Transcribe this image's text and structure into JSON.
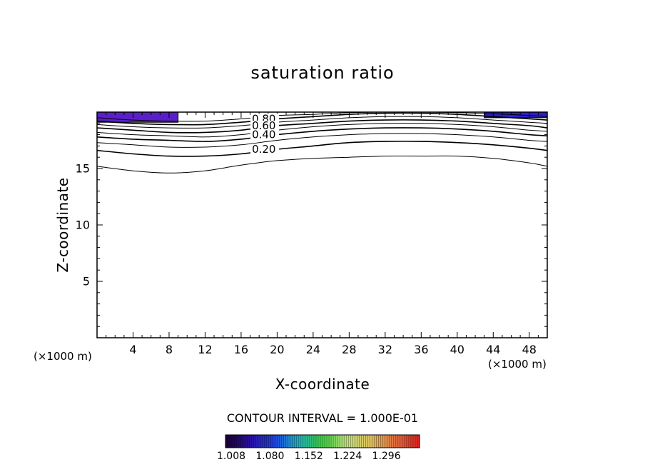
{
  "chart_data": {
    "type": "contour",
    "title": "saturation ratio",
    "xlabel": "X-coordinate",
    "ylabel": "Z-coordinate",
    "x_unit_left": "(×1000 m)",
    "x_unit_right": "(×1000 m)",
    "xlim": [
      0,
      50
    ],
    "ylim": [
      0,
      20
    ],
    "x_ticks": [
      "4",
      "8",
      "12",
      "16",
      "20",
      "24",
      "28",
      "32",
      "36",
      "40",
      "44",
      "48"
    ],
    "y_ticks": [
      "5",
      "10",
      "15"
    ],
    "contour_interval_text": "CONTOUR INTERVAL = 1.000E-01",
    "contour_labels": [
      "0.80",
      "0.60",
      "0.40",
      "0.20"
    ],
    "contours": [
      {
        "level": 0.1,
        "points": [
          [
            0,
            15.2
          ],
          [
            4,
            14.8
          ],
          [
            8,
            14.6
          ],
          [
            12,
            14.8
          ],
          [
            16,
            15.3
          ],
          [
            20,
            15.7
          ],
          [
            24,
            15.9
          ],
          [
            28,
            16.0
          ],
          [
            32,
            16.1
          ],
          [
            36,
            16.1
          ],
          [
            40,
            16.1
          ],
          [
            44,
            15.9
          ],
          [
            48,
            15.5
          ],
          [
            50,
            15.2
          ]
        ]
      },
      {
        "level": 0.2,
        "points": [
          [
            0,
            16.6
          ],
          [
            4,
            16.3
          ],
          [
            8,
            16.1
          ],
          [
            12,
            16.1
          ],
          [
            16,
            16.3
          ],
          [
            20,
            16.7
          ],
          [
            24,
            17.0
          ],
          [
            28,
            17.3
          ],
          [
            32,
            17.4
          ],
          [
            36,
            17.4
          ],
          [
            40,
            17.3
          ],
          [
            44,
            17.1
          ],
          [
            48,
            16.8
          ],
          [
            50,
            16.6
          ]
        ]
      },
      {
        "level": 0.3,
        "points": [
          [
            0,
            17.3
          ],
          [
            4,
            17.1
          ],
          [
            8,
            16.9
          ],
          [
            12,
            16.9
          ],
          [
            16,
            17.1
          ],
          [
            20,
            17.5
          ],
          [
            24,
            17.8
          ],
          [
            28,
            18.0
          ],
          [
            32,
            18.1
          ],
          [
            36,
            18.1
          ],
          [
            40,
            18.0
          ],
          [
            44,
            17.8
          ],
          [
            48,
            17.5
          ],
          [
            50,
            17.4
          ]
        ]
      },
      {
        "level": 0.4,
        "points": [
          [
            0,
            17.8
          ],
          [
            4,
            17.6
          ],
          [
            8,
            17.5
          ],
          [
            12,
            17.4
          ],
          [
            16,
            17.6
          ],
          [
            20,
            18.0
          ],
          [
            24,
            18.3
          ],
          [
            28,
            18.5
          ],
          [
            32,
            18.6
          ],
          [
            36,
            18.6
          ],
          [
            40,
            18.5
          ],
          [
            44,
            18.3
          ],
          [
            48,
            18.0
          ],
          [
            50,
            17.9
          ]
        ]
      },
      {
        "level": 0.5,
        "points": [
          [
            0,
            18.2
          ],
          [
            4,
            18.0
          ],
          [
            8,
            17.9
          ],
          [
            12,
            17.8
          ],
          [
            16,
            18.0
          ],
          [
            20,
            18.4
          ],
          [
            24,
            18.7
          ],
          [
            28,
            18.9
          ],
          [
            32,
            19.0
          ],
          [
            36,
            19.0
          ],
          [
            40,
            18.9
          ],
          [
            44,
            18.7
          ],
          [
            48,
            18.4
          ],
          [
            50,
            18.3
          ]
        ]
      },
      {
        "level": 0.6,
        "points": [
          [
            0,
            18.6
          ],
          [
            4,
            18.4
          ],
          [
            8,
            18.2
          ],
          [
            12,
            18.2
          ],
          [
            16,
            18.4
          ],
          [
            20,
            18.8
          ],
          [
            24,
            19.0
          ],
          [
            28,
            19.2
          ],
          [
            32,
            19.3
          ],
          [
            36,
            19.3
          ],
          [
            40,
            19.2
          ],
          [
            44,
            19.0
          ],
          [
            48,
            18.8
          ],
          [
            50,
            18.6
          ]
        ]
      },
      {
        "level": 0.7,
        "points": [
          [
            0,
            18.9
          ],
          [
            4,
            18.7
          ],
          [
            8,
            18.6
          ],
          [
            12,
            18.6
          ],
          [
            16,
            18.8
          ],
          [
            20,
            19.1
          ],
          [
            24,
            19.3
          ],
          [
            28,
            19.5
          ],
          [
            32,
            19.6
          ],
          [
            36,
            19.6
          ],
          [
            40,
            19.5
          ],
          [
            44,
            19.3
          ],
          [
            48,
            19.1
          ],
          [
            50,
            19.0
          ]
        ]
      },
      {
        "level": 0.8,
        "points": [
          [
            0,
            19.2
          ],
          [
            4,
            19.0
          ],
          [
            8,
            18.9
          ],
          [
            12,
            18.9
          ],
          [
            16,
            19.1
          ],
          [
            20,
            19.4
          ],
          [
            24,
            19.6
          ],
          [
            28,
            19.8
          ],
          [
            32,
            19.9
          ],
          [
            36,
            19.9
          ],
          [
            40,
            19.8
          ],
          [
            44,
            19.6
          ],
          [
            48,
            19.4
          ],
          [
            50,
            19.3
          ]
        ]
      },
      {
        "level": 0.9,
        "points": [
          [
            0,
            19.5
          ],
          [
            4,
            19.3
          ],
          [
            8,
            19.2
          ],
          [
            12,
            19.2
          ],
          [
            16,
            19.4
          ],
          [
            20,
            19.7
          ],
          [
            24,
            19.8
          ],
          [
            28,
            19.95
          ],
          [
            32,
            20.0
          ],
          [
            36,
            20.0
          ],
          [
            40,
            19.95
          ],
          [
            44,
            19.85
          ],
          [
            48,
            19.7
          ],
          [
            50,
            19.6
          ]
        ]
      }
    ],
    "supersaturated_regions": [
      {
        "x": [
          0,
          9
        ],
        "z": [
          19.1,
          20
        ],
        "color": "#5a1fc8"
      },
      {
        "x": [
          43,
          50
        ],
        "z": [
          19.5,
          20
        ],
        "color": "#2a1fd0"
      }
    ],
    "colorbar": {
      "ticks": [
        "1.008",
        "1.080",
        "1.152",
        "1.224",
        "1.296"
      ],
      "min": 1.008,
      "max": 1.368,
      "colors": [
        "#1a0030",
        "#2a10a0",
        "#2040e0",
        "#20b0c0",
        "#40d040",
        "#c0e080",
        "#e0c060",
        "#e07040",
        "#e02020"
      ]
    }
  }
}
